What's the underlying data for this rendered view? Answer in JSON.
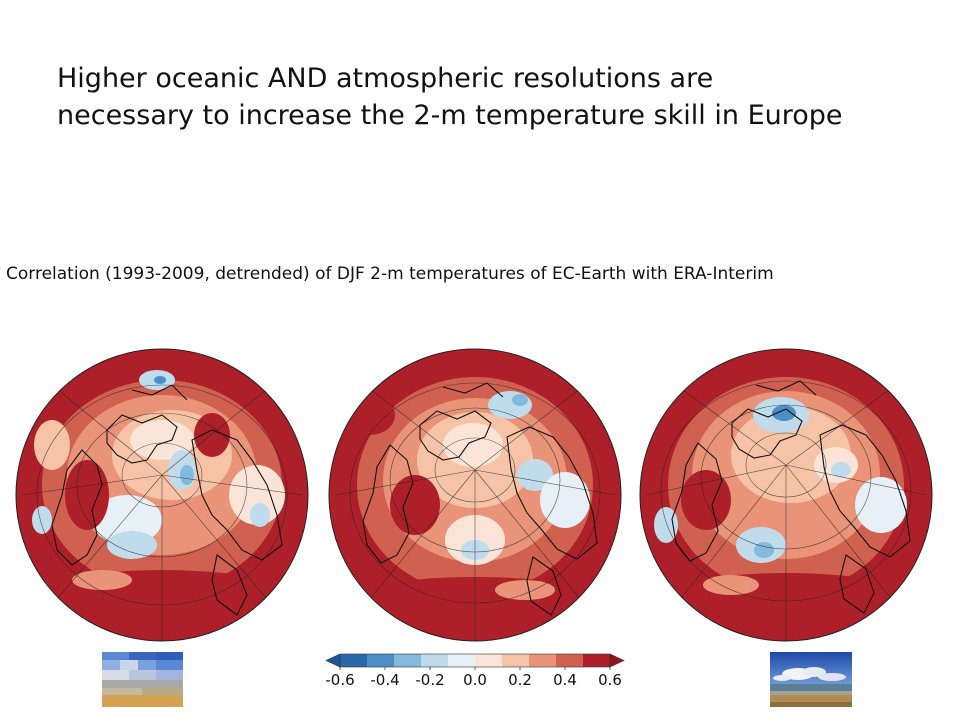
{
  "title": {
    "line1": "Higher oceanic AND atmospheric resolutions are",
    "line2": "necessary to increase the 2-m temperature skill in Europe"
  },
  "caption": "Correlation (1993-2009, detrended) of DJF 2-m temperatures of EC-Earth with ERA-Interim",
  "colorbar": {
    "ticks": [
      "-0.6",
      "-0.4",
      "-0.2",
      "0.0",
      "0.2",
      "0.4",
      "0.6"
    ],
    "range": [
      -0.6,
      0.6
    ],
    "colors": [
      "#2a67ab",
      "#4b8fc4",
      "#83b9da",
      "#c0dbec",
      "#e7f0f6",
      "#f9e4d7",
      "#f6c3a7",
      "#e99479",
      "#d0604f",
      "#ae2029"
    ],
    "extend": "both"
  },
  "maps": [
    {
      "id": "globe-1",
      "projection": "north-polar orthographic"
    },
    {
      "id": "globe-2",
      "projection": "north-polar orthographic"
    },
    {
      "id": "globe-3",
      "projection": "north-polar orthographic"
    }
  ],
  "thumbnails": [
    {
      "id": "thumb-left",
      "description": "pixelated sky and beach"
    },
    {
      "id": "thumb-right",
      "description": "sky, sea and beach"
    }
  ]
}
